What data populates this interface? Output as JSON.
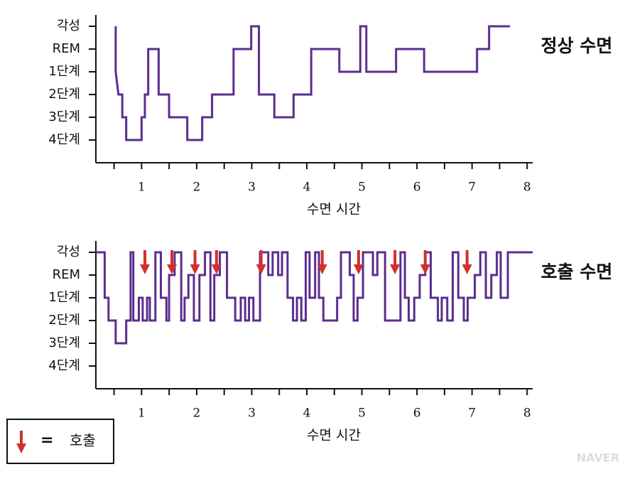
{
  "chart_data": [
    {
      "type": "line",
      "title": "정상 수면",
      "xlabel": "수면 시간",
      "color": "#5b2d8e",
      "xlim": [
        0.17,
        8.1
      ],
      "xticks": [
        1,
        2,
        3,
        4,
        5,
        6,
        7,
        8
      ],
      "xminorticks": [
        0.5,
        1.5,
        2.5,
        3.5,
        4.5,
        5.5,
        6.5,
        7.5
      ],
      "ylim": [
        6,
        -0.5
      ],
      "yticks": [
        {
          "value": 0,
          "label": "각성"
        },
        {
          "value": 1,
          "label": "REM"
        },
        {
          "value": 2,
          "label": "1단계"
        },
        {
          "value": 3,
          "label": "2단계"
        },
        {
          "value": 4,
          "label": "3단계"
        },
        {
          "value": 5,
          "label": "4단계"
        }
      ],
      "x": [
        0.53,
        0.53,
        0.58,
        0.65,
        0.65,
        0.72,
        0.72,
        1.0,
        1.0,
        1.06,
        1.06,
        1.12,
        1.12,
        1.31,
        1.31,
        1.5,
        1.5,
        1.83,
        1.83,
        2.1,
        2.1,
        2.28,
        2.28,
        2.67,
        2.67,
        2.99,
        2.99,
        3.13,
        3.13,
        3.41,
        3.41,
        3.76,
        3.76,
        4.08,
        4.08,
        4.59,
        4.59,
        4.97,
        4.97,
        5.08,
        5.08,
        5.62,
        5.62,
        6.13,
        6.13,
        7.09,
        7.09,
        7.31,
        7.31,
        7.69
      ],
      "values": [
        0,
        2,
        3,
        3,
        4,
        4,
        5,
        5,
        4,
        4,
        3,
        3,
        1,
        1,
        3,
        3,
        4,
        4,
        5,
        5,
        4,
        4,
        3,
        3,
        1,
        1,
        0,
        0,
        3,
        3,
        4,
        4,
        3,
        3,
        1,
        1,
        2,
        2,
        0,
        0,
        2,
        2,
        1,
        1,
        2,
        2,
        1,
        1,
        0,
        0
      ]
    },
    {
      "type": "line",
      "title": "호출 수면",
      "xlabel": "수면 시간",
      "color": "#5b2d8e",
      "xlim": [
        0.17,
        8.1
      ],
      "xticks": [
        1,
        2,
        3,
        4,
        5,
        6,
        7,
        8
      ],
      "xminorticks": [
        0.5,
        1.5,
        2.5,
        3.5,
        4.5,
        5.5,
        6.5,
        7.5
      ],
      "ylim": [
        6,
        -0.5
      ],
      "yticks": [
        {
          "value": 0,
          "label": "각성"
        },
        {
          "value": 1,
          "label": "REM"
        },
        {
          "value": 2,
          "label": "1단계"
        },
        {
          "value": 3,
          "label": "2단계"
        },
        {
          "value": 4,
          "label": "3단계"
        },
        {
          "value": 5,
          "label": "4단계"
        }
      ],
      "x": [
        0.17,
        0.33,
        0.33,
        0.4,
        0.4,
        0.53,
        0.53,
        0.72,
        0.72,
        0.8,
        0.8,
        0.85,
        0.85,
        0.95,
        0.95,
        1.02,
        1.02,
        1.1,
        1.1,
        1.15,
        1.15,
        1.25,
        1.25,
        1.35,
        1.35,
        1.45,
        1.45,
        1.5,
        1.5,
        1.6,
        1.6,
        1.72,
        1.72,
        1.78,
        1.78,
        1.85,
        1.85,
        1.95,
        1.95,
        2.05,
        2.05,
        2.15,
        2.15,
        2.25,
        2.25,
        2.32,
        2.32,
        2.42,
        2.42,
        2.55,
        2.55,
        2.7,
        2.7,
        2.8,
        2.8,
        2.88,
        2.88,
        2.95,
        2.95,
        3.03,
        3.03,
        3.15,
        3.15,
        3.3,
        3.3,
        3.38,
        3.38,
        3.48,
        3.48,
        3.55,
        3.55,
        3.65,
        3.65,
        3.75,
        3.75,
        3.82,
        3.82,
        3.9,
        3.9,
        3.98,
        3.98,
        4.05,
        4.05,
        4.15,
        4.15,
        4.22,
        4.22,
        4.3,
        4.3,
        4.55,
        4.55,
        4.62,
        4.62,
        4.78,
        4.78,
        4.85,
        4.85,
        4.92,
        4.92,
        5.02,
        5.02,
        5.2,
        5.2,
        5.28,
        5.28,
        5.42,
        5.42,
        5.7,
        5.7,
        5.78,
        5.78,
        5.85,
        5.85,
        5.95,
        5.95,
        6.05,
        6.05,
        6.15,
        6.15,
        6.25,
        6.25,
        6.38,
        6.38,
        6.45,
        6.45,
        6.55,
        6.55,
        6.65,
        6.65,
        6.75,
        6.75,
        6.85,
        6.85,
        6.92,
        6.92,
        7.05,
        7.05,
        7.15,
        7.15,
        7.25,
        7.25,
        7.35,
        7.35,
        7.45,
        7.45,
        7.52,
        7.52,
        7.65,
        7.65,
        8.1
      ],
      "values": [
        0,
        0,
        2,
        2,
        3,
        3,
        4,
        4,
        3,
        3,
        0,
        0,
        3,
        3,
        2,
        2,
        3,
        3,
        2,
        2,
        3,
        3,
        0,
        0,
        2,
        2,
        3,
        3,
        1,
        1,
        0,
        0,
        3,
        3,
        2,
        2,
        1,
        1,
        3,
        3,
        1,
        1,
        0,
        0,
        3,
        3,
        1,
        1,
        0,
        0,
        2,
        2,
        3,
        3,
        2,
        2,
        3,
        3,
        2,
        2,
        3,
        3,
        0,
        0,
        1,
        1,
        0,
        0,
        1,
        1,
        0,
        0,
        2,
        2,
        3,
        3,
        2,
        2,
        3,
        3,
        0,
        0,
        2,
        2,
        0,
        0,
        2,
        2,
        3,
        3,
        2,
        2,
        0,
        0,
        1,
        1,
        3,
        3,
        2,
        2,
        0,
        0,
        1,
        1,
        0,
        0,
        3,
        3,
        0,
        0,
        2,
        2,
        3,
        3,
        2,
        2,
        1,
        1,
        0,
        0,
        2,
        2,
        3,
        3,
        2,
        2,
        3,
        3,
        0,
        0,
        2,
        2,
        3,
        3,
        2,
        2,
        1,
        1,
        0,
        0,
        2,
        2,
        1,
        1,
        0,
        0,
        2,
        2,
        0,
        0
      ],
      "arrows": {
        "color": "#d0312d",
        "x": [
          1.06,
          1.55,
          1.97,
          2.36,
          3.17,
          4.28,
          4.94,
          5.6,
          6.15,
          6.91
        ]
      }
    }
  ],
  "legend": {
    "symbol": "=",
    "label": "호출"
  },
  "watermark": "NAVER"
}
